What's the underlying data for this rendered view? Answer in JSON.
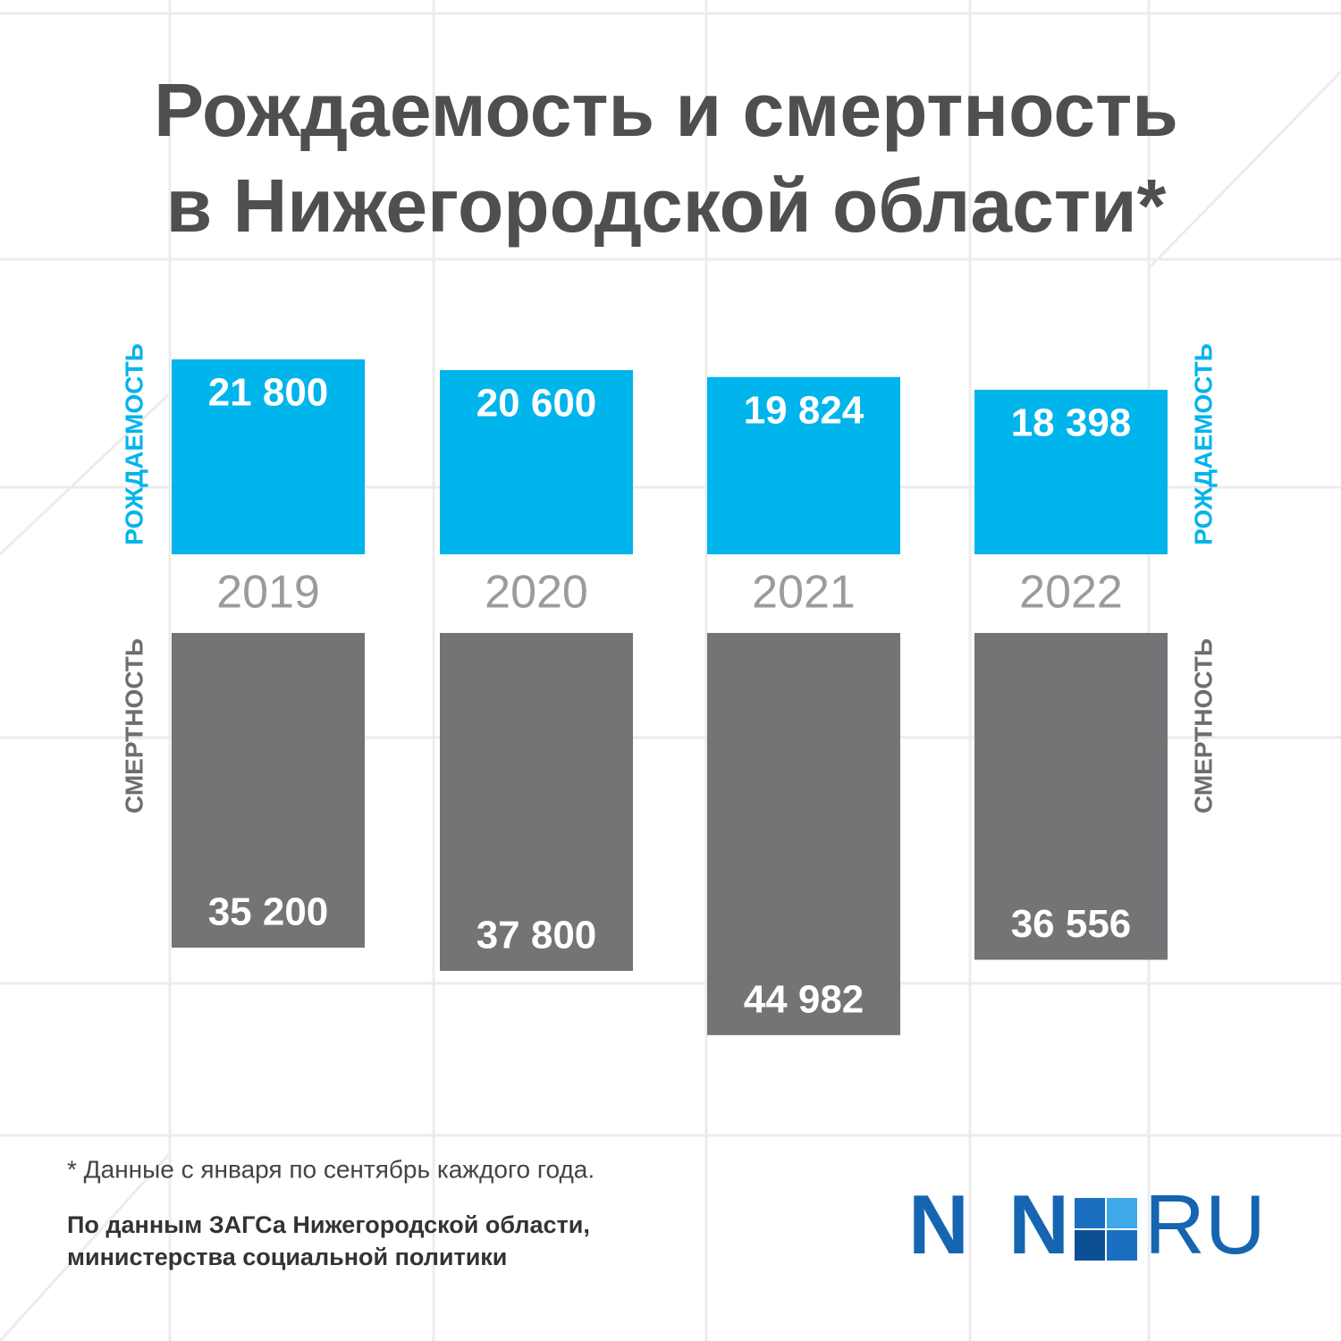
{
  "chart_data": {
    "type": "bar",
    "title": [
      "Рождаемость и смертность",
      "в Нижегородской области*"
    ],
    "categories": [
      "2019",
      "2020",
      "2021",
      "2022"
    ],
    "series": [
      {
        "name": "РОЖДАЕМОСТЬ",
        "color": "#00b4ec",
        "values": [
          21800,
          20600,
          19824,
          18398
        ],
        "value_labels": [
          "21 800",
          "20 600",
          "19 824",
          "18 398"
        ]
      },
      {
        "name": "СМЕРТНОСТЬ",
        "color": "#737476",
        "values": [
          35200,
          37800,
          44982,
          36556
        ],
        "value_labels": [
          "35 200",
          "37 800",
          "44 982",
          "36 556"
        ]
      }
    ],
    "footnote": "* Данные с января по сентябрь каждого года.",
    "source": [
      "По данным ЗАГСа Нижегородской области,",
      "министерства социальной политики"
    ],
    "logo": {
      "left": "NN",
      "right": "RU"
    }
  }
}
